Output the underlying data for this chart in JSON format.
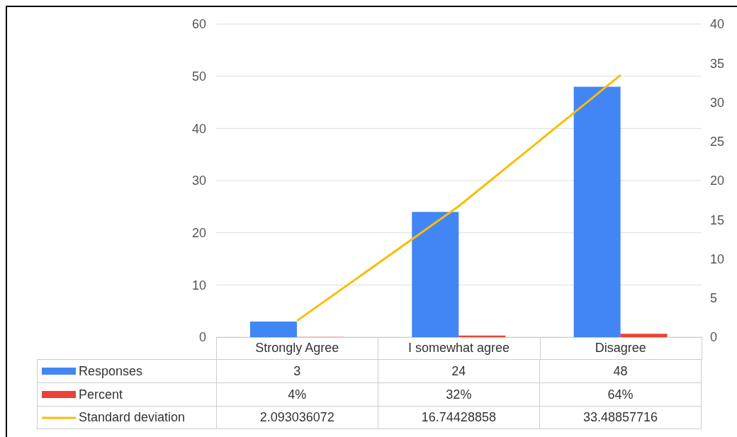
{
  "chart_data": {
    "type": "bar",
    "categories": [
      "Strongly Agree",
      "I somewhat agree",
      "Disagree"
    ],
    "series": [
      {
        "name": "Responses",
        "color": "#4285f4",
        "values": [
          3,
          24,
          48
        ],
        "value_labels": [
          "3",
          "24",
          "48"
        ]
      },
      {
        "name": "Percent",
        "color": "#ea4335",
        "values": [
          0.04,
          0.32,
          0.64
        ],
        "value_labels": [
          "4%",
          "32%",
          "64%"
        ]
      },
      {
        "name": "Standard deviation",
        "type": "line",
        "axis": "y2",
        "color": "#fbbc04",
        "values": [
          2.093036072,
          16.74428858,
          33.48857716
        ],
        "value_labels": [
          "2.093036072",
          "16.74428858",
          "33.48857716"
        ]
      }
    ],
    "ylim": [
      0,
      60
    ],
    "yticks": [
      0,
      10,
      20,
      30,
      40,
      50,
      60
    ],
    "y2lim": [
      0,
      40
    ],
    "y2ticks": [
      0,
      5,
      10,
      15,
      20,
      25,
      30,
      35,
      40
    ],
    "grid": "y",
    "legend": "bottom",
    "marker": "none"
  }
}
